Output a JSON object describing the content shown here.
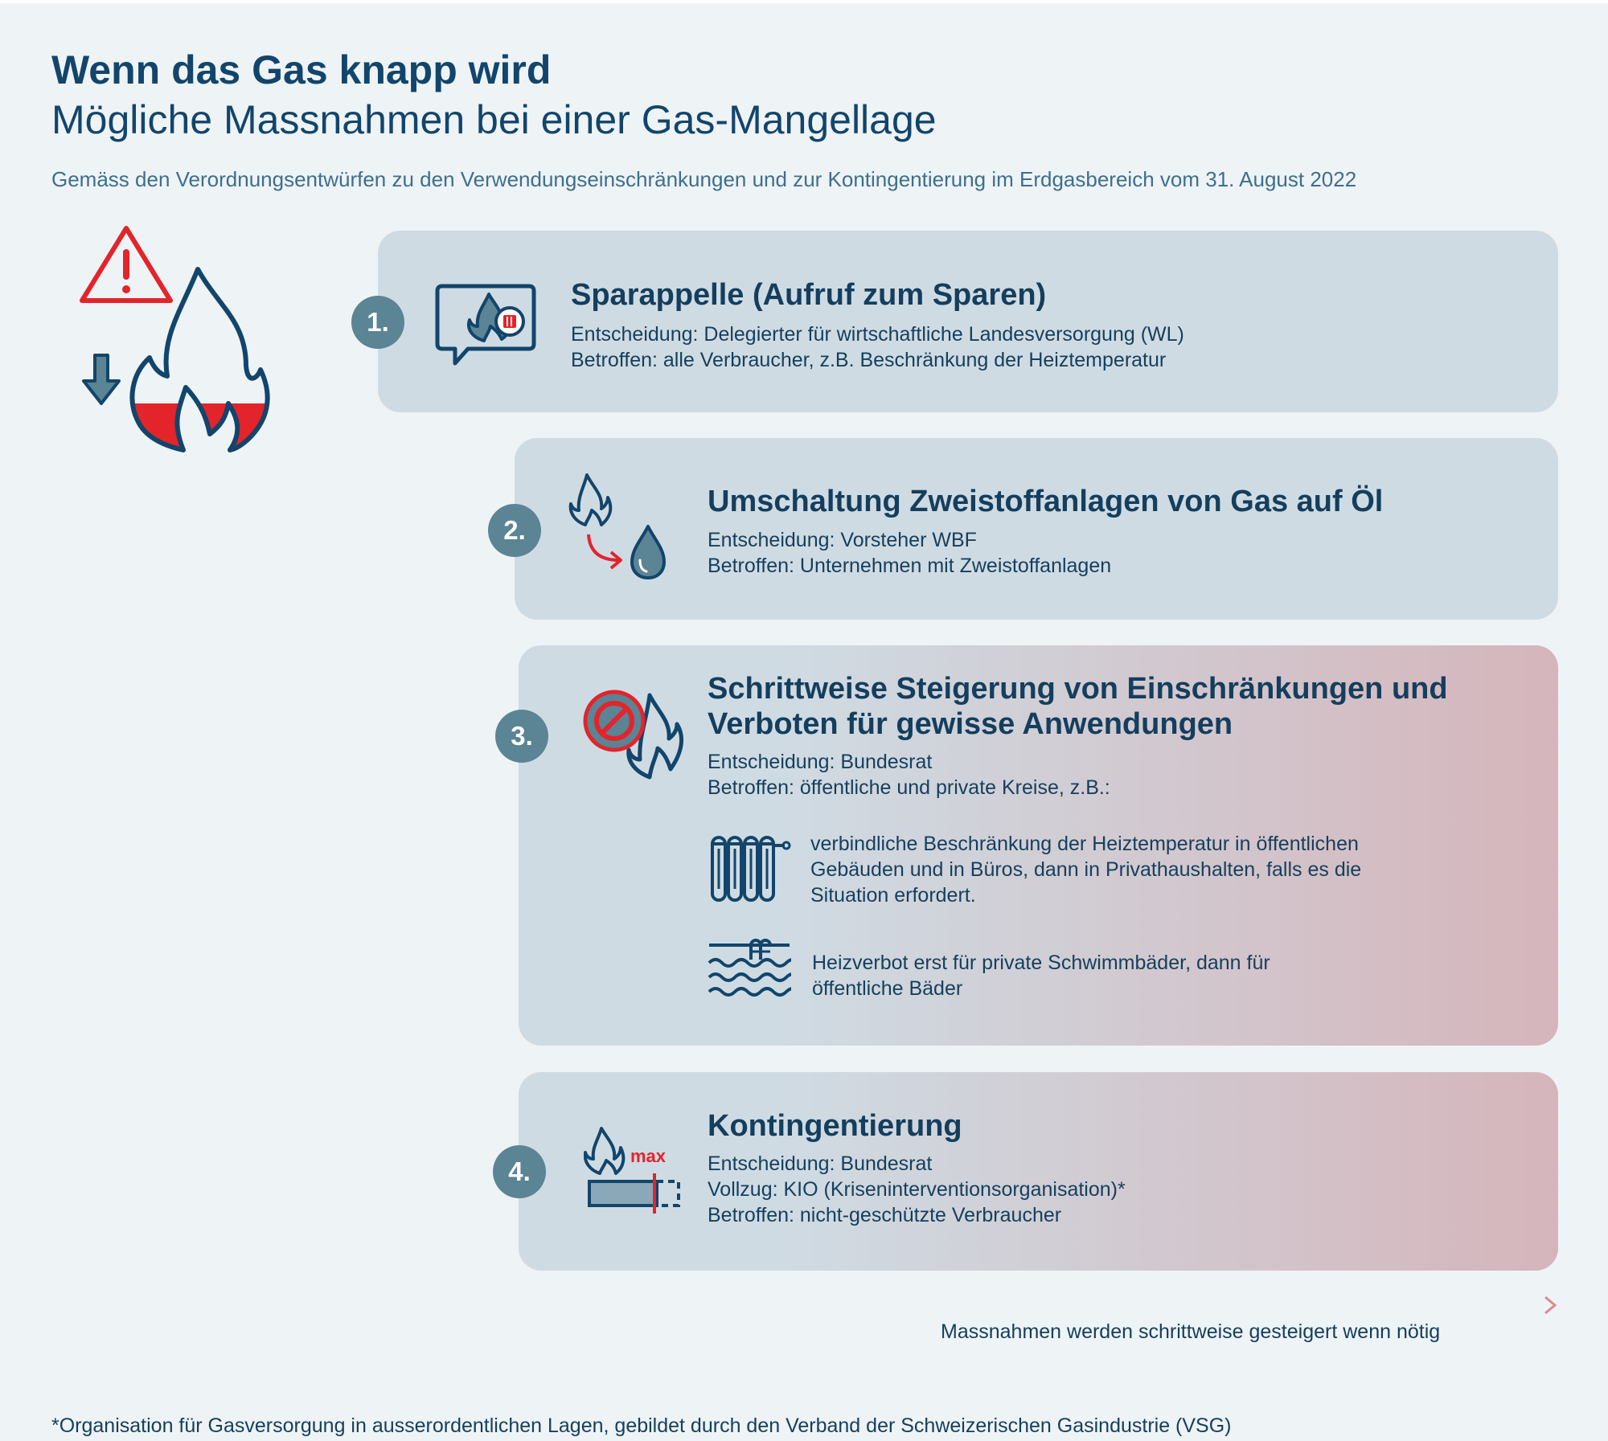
{
  "header": {
    "title": "Wenn das Gas knapp wird",
    "subtitle": "Mögliche Massnahmen bei einer Gas-Mangellage",
    "source_note": "Gemäss den Verordnungsentwürfen zu den Verwendungseinschränkungen und zur Kontingentierung im Erdgasbereich vom 31. August 2022"
  },
  "colors": {
    "dark_blue": "#12456b",
    "red": "#e3242b",
    "number_circle": "#5b8494",
    "card_blue": "#cfdbe3",
    "card_red": "#d5b5bb"
  },
  "steps": [
    {
      "number": "1.",
      "icon": "chat-flame-icon",
      "title": "Sparappelle (Aufruf zum Sparen)",
      "decision": "Entscheidung: Delegierter für wirtschaftliche Landesversorgung (WL)",
      "affected": "Betroffen: alle Verbraucher, z.B. Beschränkung der Heiztemperatur"
    },
    {
      "number": "2.",
      "icon": "flame-to-oil-drop-icon",
      "title": "Umschaltung Zweistoffanlagen von Gas auf Öl",
      "decision": "Entscheidung: Vorsteher WBF",
      "affected": "Betroffen: Unternehmen mit Zweistoffanlagen"
    },
    {
      "number": "3.",
      "icon": "prohibited-flame-icon",
      "title_line1": "Schrittweise Steigerung von Einschränkungen und",
      "title_line2": "Verboten für gewisse Anwendungen",
      "decision": "Entscheidung: Bundesrat",
      "affected": "Betroffen: öffentliche und private Kreise, z.B.:",
      "examples": [
        {
          "icon": "radiator-icon",
          "line1": "verbindliche Beschränkung der Heiztemperatur in öffentlichen",
          "line2": "Gebäuden und in Büros, dann in Privathaushalten, falls es die",
          "line3": "Situation erfordert."
        },
        {
          "icon": "swimming-pool-icon",
          "line1": "Heizverbot erst für private Schwimmbäder, dann für",
          "line2": "öffentliche Bäder"
        }
      ]
    },
    {
      "number": "4.",
      "icon": "flame-max-bar-icon",
      "icon_label": "max",
      "title": "Kontingentierung",
      "decision": "Entscheidung: Bundesrat",
      "execution": "Vollzug: KIO (Kriseninterventionsorganisation)*",
      "affected": "Betroffen: nicht-geschützte Verbraucher"
    }
  ],
  "escalation_label": "Massnahmen werden schrittweise gesteigert wenn nötig",
  "footnote": "*Organisation für Gasversorgung in ausserordentlichen Lagen, gebildet durch den Verband der Schweizerischen Gasindustrie (VSG)"
}
